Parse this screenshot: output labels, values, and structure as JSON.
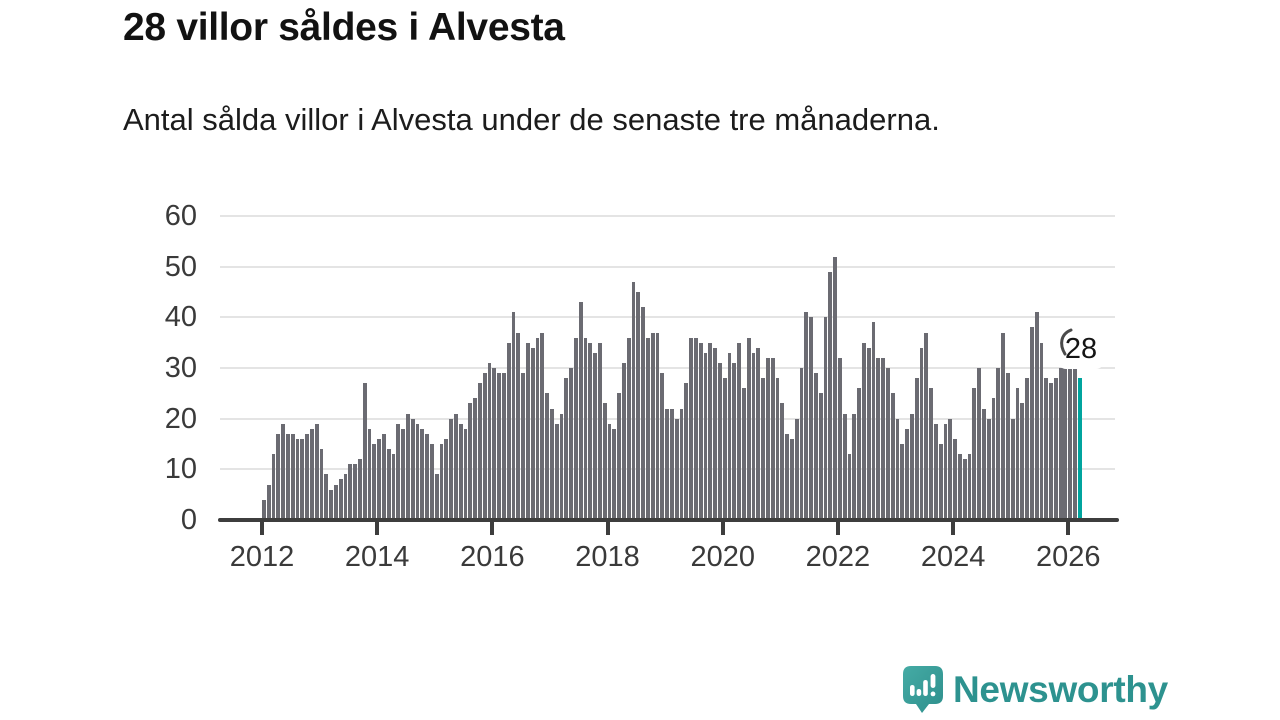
{
  "header": {
    "title": "28 villor såldes i Alvesta",
    "subtitle": "Antal sålda villor i Alvesta under de senaste tre månaderna."
  },
  "chart_data": {
    "type": "bar",
    "title": "28 villor såldes i Alvesta",
    "subtitle": "Antal sålda villor i Alvesta under de senaste tre månaderna.",
    "x_start": "2012-01",
    "x_end": "2026-03",
    "x_tick_labels": [
      "2012",
      "2014",
      "2016",
      "2018",
      "2020",
      "2022",
      "2024",
      "2026"
    ],
    "y_ticks": [
      0,
      10,
      20,
      30,
      40,
      50,
      60
    ],
    "ylim": [
      0,
      60
    ],
    "grid": true,
    "legend": null,
    "values": [
      4,
      7,
      13,
      17,
      19,
      17,
      17,
      16,
      16,
      17,
      18,
      19,
      14,
      9,
      6,
      7,
      8,
      9,
      11,
      11,
      12,
      27,
      18,
      15,
      16,
      17,
      14,
      13,
      19,
      18,
      21,
      20,
      19,
      18,
      17,
      15,
      9,
      15,
      16,
      20,
      21,
      19,
      18,
      23,
      24,
      27,
      29,
      31,
      30,
      29,
      29,
      35,
      41,
      37,
      29,
      35,
      34,
      36,
      37,
      25,
      22,
      19,
      21,
      28,
      30,
      36,
      43,
      36,
      35,
      33,
      35,
      23,
      19,
      18,
      25,
      31,
      36,
      47,
      45,
      42,
      36,
      37,
      37,
      29,
      22,
      22,
      20,
      22,
      27,
      36,
      36,
      35,
      33,
      35,
      34,
      31,
      28,
      33,
      31,
      35,
      26,
      36,
      33,
      34,
      28,
      32,
      32,
      28,
      23,
      17,
      16,
      20,
      30,
      41,
      40,
      29,
      25,
      40,
      49,
      52,
      32,
      21,
      13,
      21,
      26,
      35,
      34,
      39,
      32,
      32,
      30,
      25,
      20,
      15,
      18,
      21,
      28,
      34,
      37,
      26,
      19,
      15,
      19,
      20,
      16,
      13,
      12,
      13,
      26,
      30,
      22,
      20,
      24,
      30,
      37,
      29,
      20,
      26,
      23,
      28,
      38,
      41,
      35,
      28,
      27,
      28,
      30,
      30,
      30,
      31,
      28
    ],
    "highlight": {
      "position": "last",
      "value": 28,
      "label": "28"
    },
    "colors": {
      "bar": "#6b6b72",
      "highlight": "#00a49e",
      "grid": "#e4e4e4",
      "axis": "#3d3d3d",
      "tick_text": "#3a3a3a"
    }
  },
  "branding": {
    "logo_text": "Newsworthy",
    "logo_text_color": "#2d928f",
    "bubble_color_top": "#45aba5",
    "bubble_color_bottom": "#2e8f8c"
  }
}
